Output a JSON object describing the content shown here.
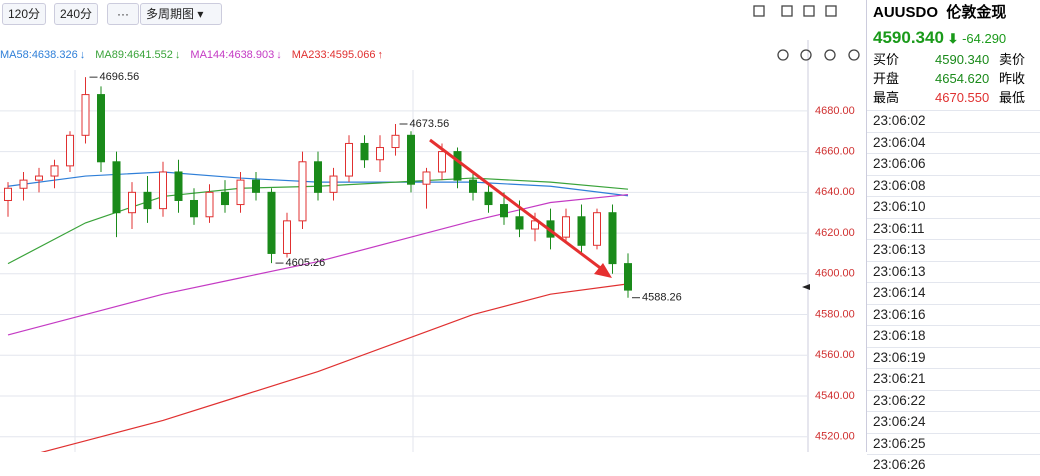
{
  "toolbar": {
    "buttons": [
      "120分",
      "240分",
      "多周期图"
    ]
  },
  "chart_data": {
    "type": "candlestick",
    "ylim": [
      4512.5,
      4714.8
    ],
    "yticks": [
      {
        "value": 4520,
        "label": "4520.00"
      },
      {
        "value": 4540,
        "label": "4540.00"
      },
      {
        "value": 4560,
        "label": "4560.00"
      },
      {
        "value": 4580,
        "label": "4580.00"
      },
      {
        "value": 4600,
        "label": "4600.00"
      },
      {
        "value": 4620,
        "label": "4620.00"
      },
      {
        "value": 4640,
        "label": "4640.00"
      },
      {
        "value": 4660,
        "label": "4660.00"
      },
      {
        "value": 4680,
        "label": "4680.00"
      }
    ],
    "candles": [
      [
        4636,
        4645,
        4628,
        4642
      ],
      [
        4642,
        4650,
        4636,
        4646
      ],
      [
        4646,
        4652,
        4640,
        4648
      ],
      [
        4648,
        4656,
        4642,
        4653
      ],
      [
        4653,
        4670,
        4650,
        4668
      ],
      [
        4668,
        4696.56,
        4664,
        4688
      ],
      [
        4688,
        4692,
        4650,
        4655
      ],
      [
        4655,
        4660,
        4618,
        4630
      ],
      [
        4630,
        4645,
        4622,
        4640
      ],
      [
        4640,
        4648,
        4625,
        4632
      ],
      [
        4632,
        4655,
        4628,
        4650
      ],
      [
        4650,
        4656,
        4630,
        4636
      ],
      [
        4636,
        4642,
        4624,
        4628
      ],
      [
        4628,
        4644,
        4625,
        4640
      ],
      [
        4640,
        4646,
        4630,
        4634
      ],
      [
        4634,
        4650,
        4630,
        4646
      ],
      [
        4646,
        4650,
        4636,
        4640
      ],
      [
        4640,
        4642,
        4605.26,
        4610
      ],
      [
        4610,
        4630,
        4608,
        4626
      ],
      [
        4626,
        4660,
        4622,
        4655
      ],
      [
        4655,
        4660,
        4636,
        4640
      ],
      [
        4640,
        4652,
        4636,
        4648
      ],
      [
        4648,
        4668,
        4645,
        4664
      ],
      [
        4664,
        4668,
        4652,
        4656
      ],
      [
        4656,
        4668,
        4650,
        4662
      ],
      [
        4662,
        4673.56,
        4658,
        4668
      ],
      [
        4668,
        4670,
        4640,
        4644
      ],
      [
        4644,
        4652,
        4632,
        4650
      ],
      [
        4650,
        4664,
        4646,
        4660
      ],
      [
        4660,
        4662,
        4642,
        4646
      ],
      [
        4646,
        4650,
        4636,
        4640
      ],
      [
        4640,
        4644,
        4630,
        4634
      ],
      [
        4634,
        4640,
        4624,
        4628
      ],
      [
        4628,
        4636,
        4618,
        4622
      ],
      [
        4622,
        4630,
        4616,
        4626
      ],
      [
        4626,
        4632,
        4612,
        4618
      ],
      [
        4618,
        4632,
        4616,
        4628
      ],
      [
        4628,
        4634,
        4610,
        4614
      ],
      [
        4614,
        4632,
        4612,
        4630
      ],
      [
        4630,
        4634,
        4600,
        4605
      ],
      [
        4605,
        4610,
        4588.26,
        4592
      ]
    ],
    "ma_x": [
      0,
      5,
      10,
      15,
      20,
      25,
      30,
      35,
      40
    ],
    "series": [
      {
        "name": "MA58",
        "value": 4638.326,
        "arrow": "↓",
        "color": "#2f7fd8",
        "values": [
          4643,
          4648,
          4650,
          4647,
          4645,
          4645,
          4645,
          4643,
          4638.326
        ]
      },
      {
        "name": "MA89",
        "value": 4641.552,
        "arrow": "↓",
        "color": "#3aa33a",
        "values": [
          4605,
          4625,
          4638,
          4642,
          4643,
          4645,
          4647,
          4645,
          4641.552
        ]
      },
      {
        "name": "MA144",
        "value": 4638.903,
        "arrow": "↓",
        "color": "#c43ac4",
        "values": [
          4570,
          4580,
          4590,
          4598,
          4606,
          4616,
          4626,
          4635,
          4638.903
        ]
      },
      {
        "name": "MA233",
        "value": 4595.066,
        "arrow": "↑",
        "color": "#e03030",
        "values": [
          4508,
          4518,
          4528,
          4540,
          4552,
          4566,
          4580,
          4590,
          4595.066
        ]
      }
    ],
    "annotations": [
      {
        "text": "4696.56",
        "candle": 5,
        "value": 4696.56
      },
      {
        "text": "4673.56",
        "candle": 25,
        "value": 4673.56
      },
      {
        "text": "4605.26",
        "candle": 17,
        "value": 4605.26
      },
      {
        "text": "4588.26",
        "candle": 40,
        "value": 4588.26
      }
    ]
  },
  "quote": {
    "symbol": "AUUSDO",
    "name": "伦敦金现",
    "price": "4590.340",
    "change": "-64.290",
    "rows": [
      [
        "买价",
        "4590.340",
        "卖价"
      ],
      [
        "开盘",
        "4654.620",
        "昨收"
      ],
      [
        "最高",
        "4670.550",
        "最低"
      ]
    ],
    "times": [
      "23:06:02",
      "23:06:04",
      "23:06:06",
      "23:06:08",
      "23:06:10",
      "23:06:11",
      "23:06:13",
      "23:06:13",
      "23:06:14",
      "23:06:16",
      "23:06:18",
      "23:06:19",
      "23:06:21",
      "23:06:22",
      "23:06:24",
      "23:06:25",
      "23:06:26"
    ]
  }
}
